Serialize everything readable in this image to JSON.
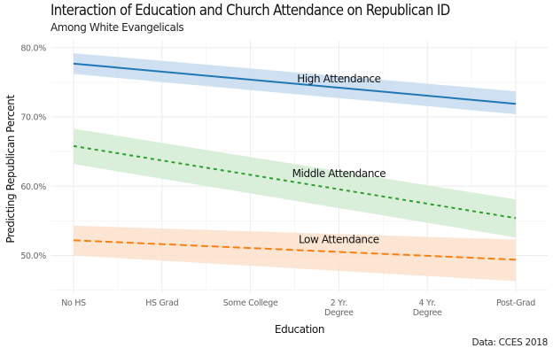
{
  "chart_data": {
    "type": "line",
    "title": "Interaction of Education and Church Attendance on Republican ID",
    "subtitle": "Among White Evangelicals",
    "xlabel": "Education",
    "ylabel": "Predicting Republican Percent",
    "caption": "Data: CCES 2018",
    "categories": [
      [
        "No HS"
      ],
      [
        "HS Grad"
      ],
      [
        "Some College"
      ],
      [
        "2 Yr.",
        "Degree"
      ],
      [
        "4 Yr.",
        "Degree"
      ],
      [
        "Post-Grad"
      ]
    ],
    "y_ticks": [
      50,
      60,
      70,
      80
    ],
    "y_tick_labels": [
      "50.0%",
      "60.0%",
      "70.0%",
      "80.0%"
    ],
    "ylim": [
      44.7,
      81.0
    ],
    "grid": true,
    "legend": "none (direct labels)",
    "series": [
      {
        "name": "High Attendance",
        "label": "High Attendance",
        "color": "#1f77b4",
        "band_color": "#c6dbef",
        "dash": "solid",
        "start": 77.7,
        "end": 71.9,
        "lower_start": 76.2,
        "lower_end": 70.4,
        "upper_start": 79.2,
        "upper_end": 73.7,
        "label_at": {
          "x_index": 3,
          "y": 75.5
        }
      },
      {
        "name": "Middle Attendance",
        "label": "Middle Attendance",
        "color": "#2ca02c",
        "band_color": "#d4ecd2",
        "dash": "dotted",
        "start": 65.8,
        "end": 55.4,
        "lower_start": 63.2,
        "lower_end": 52.6,
        "upper_start": 68.3,
        "upper_end": 58.1,
        "label_at": {
          "x_index": 3,
          "y": 61.8
        }
      },
      {
        "name": "Low Attendance",
        "label": "Low Attendance",
        "color": "#ff7f0e",
        "band_color": "#fde0cc",
        "dash": "dashed",
        "start": 52.2,
        "end": 49.4,
        "lower_start": 50.0,
        "lower_end": 46.3,
        "upper_start": 54.3,
        "upper_end": 52.3,
        "label_at": {
          "x_index": 3,
          "y": 52.3
        }
      }
    ]
  }
}
